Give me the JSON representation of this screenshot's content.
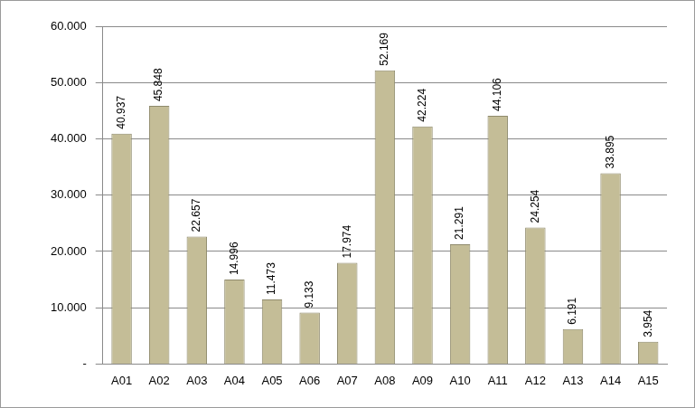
{
  "chart_data": {
    "type": "bar",
    "categories": [
      "A01",
      "A02",
      "A03",
      "A04",
      "A05",
      "A06",
      "A07",
      "A08",
      "A09",
      "A10",
      "A11",
      "A12",
      "A13",
      "A14",
      "A15"
    ],
    "values": [
      40937,
      45848,
      22657,
      14996,
      11473,
      9133,
      17974,
      52169,
      42224,
      21291,
      44106,
      24254,
      6191,
      33895,
      3954
    ],
    "value_labels": [
      "40.937",
      "45.848",
      "22.657",
      "14.996",
      "11.473",
      "9.133",
      "17.974",
      "52.169",
      "42.224",
      "21.291",
      "44.106",
      "24.254",
      "6.191",
      "33.895",
      "3.954"
    ],
    "color": "#c4bd97",
    "ylim": [
      0,
      60000
    ],
    "yticks": [
      {
        "value": 0,
        "label": "-"
      },
      {
        "value": 10000,
        "label": "10.000"
      },
      {
        "value": 20000,
        "label": "20.000"
      },
      {
        "value": 30000,
        "label": "30.000"
      },
      {
        "value": 40000,
        "label": "40.000"
      },
      {
        "value": 50000,
        "label": "50.000"
      },
      {
        "value": 60000,
        "label": "60.000"
      }
    ],
    "grid": true,
    "data_labels": true
  }
}
